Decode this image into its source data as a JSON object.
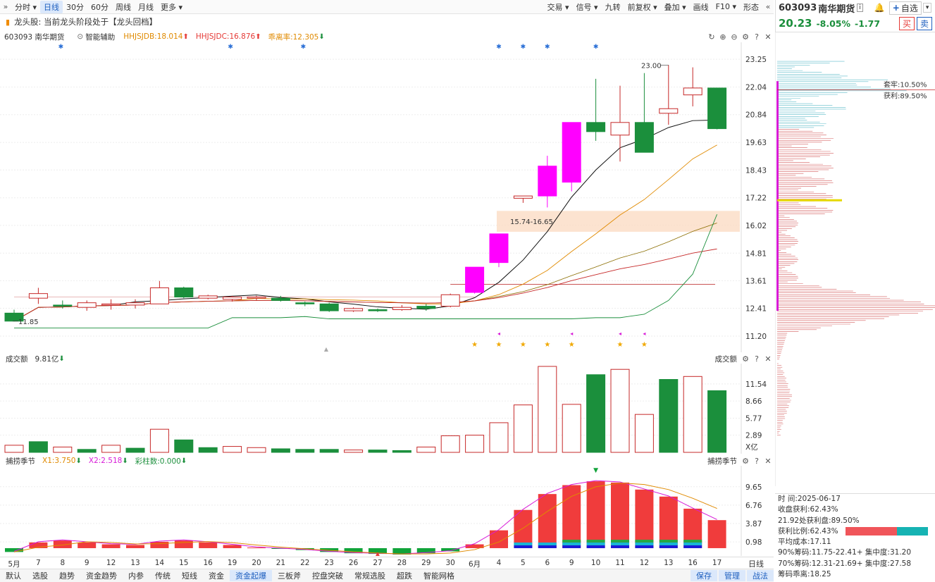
{
  "toolbar": {
    "periods": [
      "分时",
      "日线",
      "30分",
      "60分",
      "周线",
      "月线",
      "更多"
    ],
    "right": [
      "交易",
      "信号",
      "九转",
      "前复权",
      "叠加",
      "画线",
      "F10",
      "形态"
    ]
  },
  "stock": {
    "code": "603093",
    "name": "南华期货",
    "price": "20.23",
    "pct": "-8.05%",
    "change": "-1.77",
    "self_select": "自选",
    "buy": "买",
    "sell": "卖"
  },
  "banner": {
    "title": "龙头股: 当前龙头阶段处于【龙头回档】"
  },
  "indicator_row": {
    "code_name": "603093 南华期货",
    "assist": "智能辅助",
    "hhjsjdb": "HHJSJDB:18.014",
    "hhjsjdc": "HHJSJDC:16.876",
    "deviation": "乖离率:12.305"
  },
  "main_chart": {
    "y_labels": [
      "23.25",
      "22.04",
      "20.84",
      "19.63",
      "18.43",
      "17.22",
      "16.02",
      "14.81",
      "13.61",
      "12.41",
      "11.20"
    ],
    "ymin": 10.8,
    "ymax": 23.5,
    "candles": [
      [
        12.2,
        11.85,
        11.85,
        12.35
      ],
      [
        12.85,
        13.05,
        12.6,
        13.3
      ],
      [
        12.55,
        12.5,
        12.4,
        12.75
      ],
      [
        12.45,
        12.65,
        12.3,
        12.75
      ],
      [
        12.55,
        12.6,
        12.35,
        12.8
      ],
      [
        12.55,
        12.65,
        12.4,
        12.8
      ],
      [
        12.6,
        13.3,
        12.6,
        13.6
      ],
      [
        13.3,
        12.9,
        12.85,
        13.35
      ],
      [
        12.85,
        12.95,
        12.8,
        13.0
      ],
      [
        12.8,
        12.9,
        12.7,
        12.95
      ],
      [
        12.85,
        12.9,
        12.75,
        12.95
      ],
      [
        12.85,
        12.75,
        12.7,
        12.95
      ],
      [
        12.65,
        12.6,
        12.5,
        12.7
      ],
      [
        12.6,
        12.3,
        12.25,
        12.65
      ],
      [
        12.3,
        12.4,
        12.25,
        12.45
      ],
      [
        12.35,
        12.3,
        12.25,
        12.4
      ],
      [
        12.35,
        12.45,
        12.3,
        12.55
      ],
      [
        12.5,
        12.4,
        12.3,
        12.6
      ],
      [
        12.5,
        13.0,
        12.45,
        13.05
      ],
      [
        13.1,
        14.2,
        13.05,
        14.2
      ],
      [
        14.4,
        15.65,
        14.2,
        15.65
      ],
      [
        17.2,
        17.3,
        17.0,
        17.3
      ],
      [
        17.3,
        18.6,
        16.8,
        19.05
      ],
      [
        17.9,
        20.5,
        17.5,
        20.5
      ],
      [
        20.5,
        20.1,
        19.7,
        22.4
      ],
      [
        19.95,
        20.5,
        18.8,
        22.1
      ],
      [
        20.5,
        19.2,
        19.2,
        22.65
      ],
      [
        20.9,
        21.1,
        20.4,
        23.0
      ],
      [
        21.7,
        22.0,
        21.2,
        22.9
      ],
      [
        22.0,
        20.23,
        20.2,
        22.0
      ]
    ],
    "labels": {
      "high": "23.00",
      "low": "11.85",
      "zone": "15.74-16.65"
    }
  },
  "volume": {
    "title": "成交额",
    "value": "9.81亿",
    "y_labels": [
      "11.54",
      "8.66",
      "5.77",
      "2.89"
    ],
    "unit": "X亿",
    "max": 14.5,
    "bars": [
      [
        1.2,
        0
      ],
      [
        1.8,
        1
      ],
      [
        0.9,
        0
      ],
      [
        0.5,
        1
      ],
      [
        1.2,
        0
      ],
      [
        0.7,
        1
      ],
      [
        3.9,
        0
      ],
      [
        2.1,
        1
      ],
      [
        0.8,
        1
      ],
      [
        1.0,
        0
      ],
      [
        0.8,
        0
      ],
      [
        0.6,
        1
      ],
      [
        0.5,
        1
      ],
      [
        0.5,
        1
      ],
      [
        0.4,
        0
      ],
      [
        0.4,
        1
      ],
      [
        0.3,
        1
      ],
      [
        0.9,
        0
      ],
      [
        2.8,
        0
      ],
      [
        2.9,
        0
      ],
      [
        5.0,
        0
      ],
      [
        8.0,
        0
      ],
      [
        14.5,
        0
      ],
      [
        8.1,
        0
      ],
      [
        13.1,
        1
      ],
      [
        14.0,
        0
      ],
      [
        6.4,
        0
      ],
      [
        12.3,
        1
      ],
      [
        12.8,
        0
      ],
      [
        10.4,
        1
      ]
    ]
  },
  "season": {
    "title": "捕捞季节",
    "x1": "X1:3.750",
    "x2": "X2:2.518",
    "bars_count": "彩柱数:0.000",
    "y_labels": [
      "9.65",
      "6.76",
      "3.87",
      "0.98"
    ],
    "ymin": -1.0,
    "ymax": 12.5,
    "values": [
      -0.6,
      0.9,
      1.2,
      0.9,
      0.6,
      0.5,
      1.0,
      1.2,
      0.9,
      0.5,
      0.1,
      -0.1,
      -0.3,
      -0.6,
      -0.8,
      -0.9,
      -1.0,
      -0.8,
      -0.5,
      0.6,
      2.8,
      6.0,
      8.5,
      9.9,
      10.5,
      10.3,
      9.2,
      8.1,
      6.2,
      4.4,
      2.4
    ],
    "colored_from": 23
  },
  "x_axis": [
    "5月",
    "7",
    "8",
    "9",
    "12",
    "13",
    "14",
    "15",
    "16",
    "19",
    "20",
    "21",
    "22",
    "23",
    "26",
    "27",
    "28",
    "29",
    "30",
    "6月",
    "4",
    "5",
    "6",
    "9",
    "10",
    "11",
    "12",
    "13",
    "16",
    "17"
  ],
  "x_axis_right": "日线",
  "bottom_tabs": [
    "默认",
    "选股",
    "趋势",
    "资金趋势",
    "内参",
    "传统",
    "短线",
    "资金",
    "资金起爆",
    "三板斧",
    "控盘突破",
    "常规选股",
    "超跌",
    "智能网格"
  ],
  "bottom_right": [
    "保存",
    "管理",
    "战法"
  ],
  "chip": {
    "trap": "套牢:10.50%",
    "profit": "获利:89.50%"
  },
  "stats": [
    "时   间:2025-06-17",
    "收盘获利:62.43%",
    "21.92处获利盘:89.50%",
    "获利比例:62.43%",
    "平均成本:17.11",
    "90%筹码:11.75-22.41+ 集中度:31.20",
    "70%筹码:12.31-21.69+ 集中度:27.58",
    "筹码乖离:18.25"
  ]
}
